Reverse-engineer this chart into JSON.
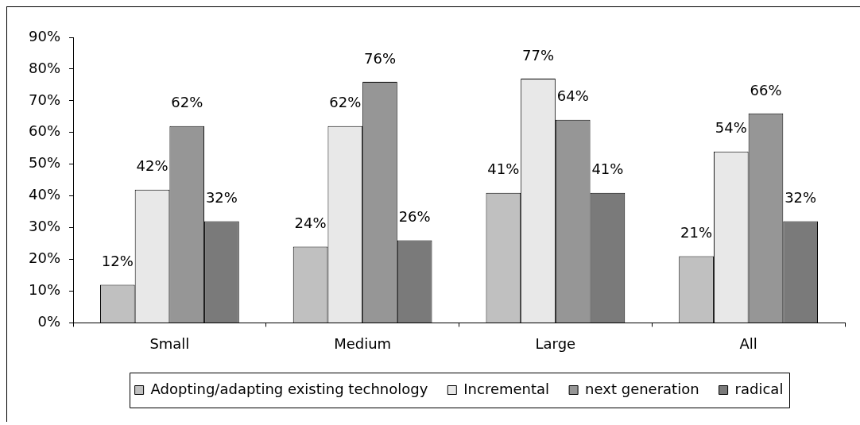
{
  "chart_data": {
    "type": "bar",
    "categories": [
      "Small",
      "Medium",
      "Large",
      "All"
    ],
    "series": [
      {
        "name": "Adopting/adapting existing technology",
        "color": "#c0c0c0",
        "values": [
          12,
          24,
          41,
          21
        ],
        "value_labels": [
          "12%",
          "24%",
          "41%",
          "21%"
        ]
      },
      {
        "name": "Incremental",
        "color": "#e8e8e8",
        "values": [
          42,
          62,
          77,
          54
        ],
        "value_labels": [
          "42%",
          "62%",
          "77%",
          "54%"
        ]
      },
      {
        "name": "next generation",
        "color": "#969696",
        "values": [
          62,
          76,
          64,
          66
        ],
        "value_labels": [
          "62%",
          "76%",
          "64%",
          "66%"
        ]
      },
      {
        "name": "radical",
        "color": "#7a7a7a",
        "values": [
          32,
          26,
          41,
          32
        ],
        "value_labels": [
          "32%",
          "26%",
          "41%",
          "32%"
        ]
      }
    ],
    "ylim": [
      0,
      90
    ],
    "yticks": [
      {
        "value": 0,
        "label": "0%"
      },
      {
        "value": 10,
        "label": "10%"
      },
      {
        "value": 20,
        "label": "20%"
      },
      {
        "value": 30,
        "label": "30%"
      },
      {
        "value": 40,
        "label": "40%"
      },
      {
        "value": 50,
        "label": "50%"
      },
      {
        "value": 60,
        "label": "60%"
      },
      {
        "value": 70,
        "label": "70%"
      },
      {
        "value": 80,
        "label": "80%"
      },
      {
        "value": 90,
        "label": "90%"
      }
    ],
    "legend": "bottom"
  }
}
